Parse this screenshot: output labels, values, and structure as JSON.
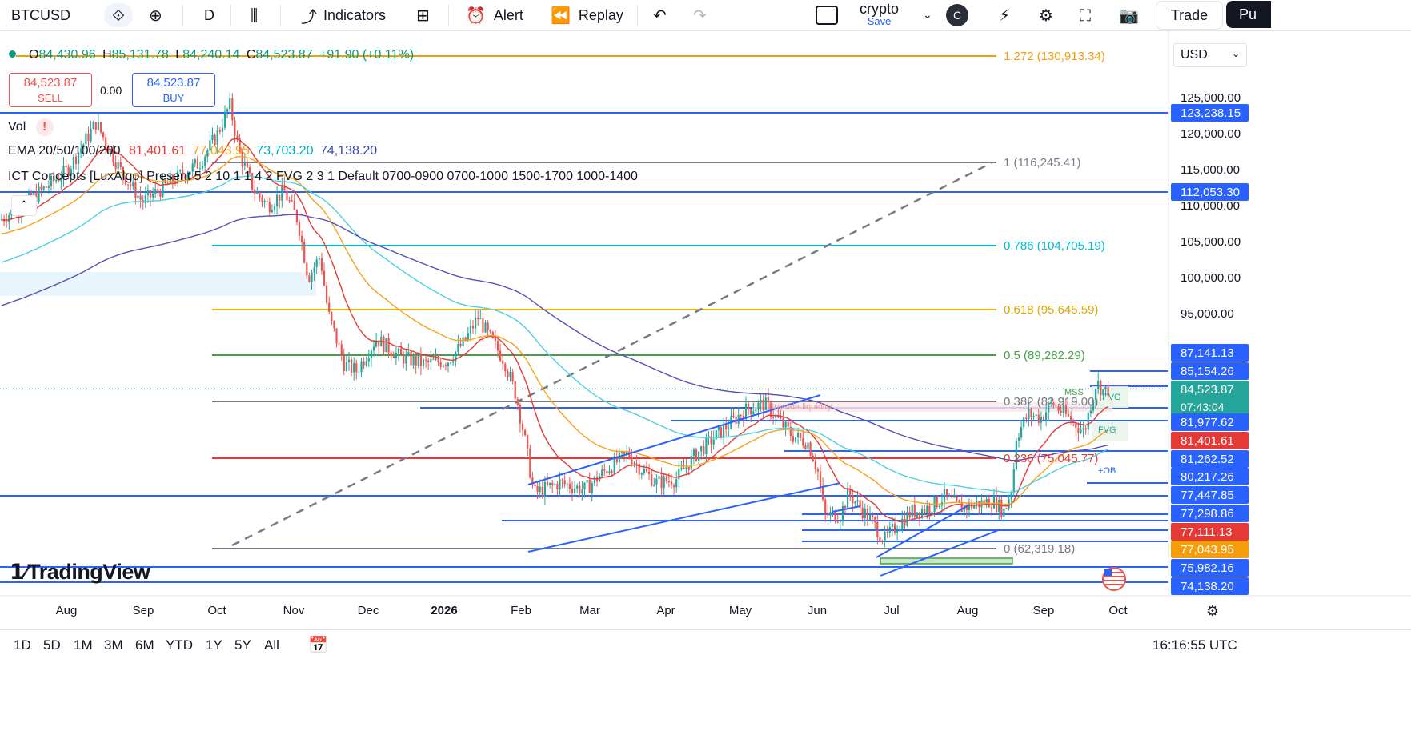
{
  "toolbar": {
    "symbol": "BTCUSD",
    "interval": "D",
    "indicators_label": "Indicators",
    "alert_label": "Alert",
    "replay_label": "Replay",
    "layout_name": "crypto",
    "layout_save": "Save",
    "avatar_letter": "C",
    "trade_label": "Trade",
    "publish_label": "Pu"
  },
  "legend": {
    "ohlc": {
      "o_label": "O",
      "o": "84,430.96",
      "h_label": "H",
      "h": "85,131.78",
      "l_label": "L",
      "l": "84,240.14",
      "c_label": "C",
      "c": "84,523.87",
      "change": "+91.90 (+0.11%)"
    },
    "sell_price": "84,523.87",
    "sell_label": "SELL",
    "spread": "0.00",
    "buy_price": "84,523.87",
    "buy_label": "BUY",
    "vol_label": "Vol",
    "ema_label": "EMA 20/50/100/200",
    "ema_values": [
      "81,401.61",
      "77,043.95",
      "73,703.20",
      "74,138.20"
    ],
    "ict_label": "ICT Concepts [LuxAlgo] Present 5 2 10 1 1 4 2 FVG 2 3 1 Default 0700-0900 0700-1000 1500-1700 1000-1400"
  },
  "currency": "USD",
  "colors": {
    "up": "#26a69a",
    "down": "#ef5350",
    "blue": "#2962ff",
    "ema20": "#e53935",
    "ema50": "#f7a21b",
    "ema100": "#4dd0e1",
    "ema200": "#5b4fb8",
    "fib_gray": "#787b86",
    "fib_teal": "#00bcd4",
    "fib_yellow": "#f5b400",
    "fib_green": "#43a047",
    "fib_red": "#e53935",
    "fib_orange": "#f59e0b"
  },
  "fib_labels": [
    {
      "text": "1.272 (130,913.34)",
      "color": "#f59e0b"
    },
    {
      "text": "1 (116,245.41)",
      "color": "#787b86"
    },
    {
      "text": "0.786 (104,705.19)",
      "color": "#00bcd4"
    },
    {
      "text": "0.618 (95,645.59)",
      "color": "#e0a800"
    },
    {
      "text": "0.5 (89,282.29)",
      "color": "#43a047"
    },
    {
      "text": "0.382 (82,919.00)",
      "color": "#787b86"
    },
    {
      "text": "0.236 (75,045.77)",
      "color": "#e53935"
    },
    {
      "text": "0 (62,319.18)",
      "color": "#787b86"
    }
  ],
  "chart_data": {
    "type": "candlestick",
    "symbol": "BTCUSD",
    "interval": "D",
    "x_ticks": [
      "Aug",
      "Sep",
      "Oct",
      "Nov",
      "Dec",
      "2026",
      "Feb",
      "Mar",
      "Apr",
      "May",
      "Jun",
      "Jul",
      "Aug",
      "Sep",
      "Oct"
    ],
    "y_ticks": [
      125000,
      120000,
      115000,
      110000,
      105000,
      100000,
      95000
    ],
    "y_tick_labels": [
      "125,000.00",
      "120,000.00",
      "115,000.00",
      "110,000.00",
      "105,000.00",
      "100,000.00",
      "95,000.00"
    ],
    "ylim": [
      60000,
      133000
    ],
    "last_price": 84523.87,
    "countdown": "07:43:04",
    "price_tags": [
      {
        "value": "123,238.15",
        "color": "#2962ff"
      },
      {
        "value": "112,053.30",
        "color": "#2962ff"
      },
      {
        "value": "87,141.13",
        "color": "#2962ff"
      },
      {
        "value": "85,154.26",
        "color": "#2962ff"
      },
      {
        "value": "84,523.87",
        "color": "#26a69a"
      },
      {
        "value": "81,977.62",
        "color": "#2962ff"
      },
      {
        "value": "81,401.61",
        "color": "#e53935"
      },
      {
        "value": "81,262.52",
        "color": "#2962ff"
      },
      {
        "value": "80,217.26",
        "color": "#2962ff"
      },
      {
        "value": "77,447.85",
        "color": "#2962ff"
      },
      {
        "value": "77,298.86",
        "color": "#2962ff"
      },
      {
        "value": "77,111.13",
        "color": "#e53935"
      },
      {
        "value": "77,043.95",
        "color": "#f59e0b"
      },
      {
        "value": "75,982.16",
        "color": "#2962ff"
      },
      {
        "value": "74,138.20",
        "color": "#2962ff"
      }
    ],
    "annotations": [
      "MSS",
      "FVG",
      "FVG",
      "+OB",
      "Buyside liquidity"
    ]
  },
  "time_ranges": [
    "1D",
    "5D",
    "1M",
    "3M",
    "6M",
    "YTD",
    "1Y",
    "5Y",
    "All"
  ],
  "clock": "16:16:55 UTC",
  "brand": "TradingView"
}
